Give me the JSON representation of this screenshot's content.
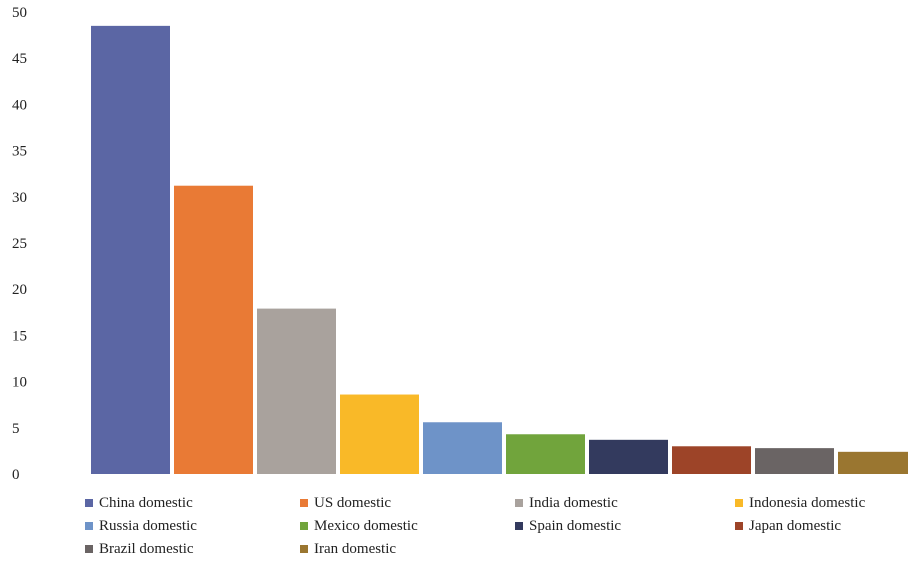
{
  "chart_data": {
    "type": "bar",
    "categories": [
      "China domestic",
      "US domestic",
      "India domestic",
      "Indonesia domestic",
      "Russia domestic",
      "Mexico domestic",
      "Spain domestic",
      "Japan domestic",
      "Brazil domestic",
      "Iran domestic"
    ],
    "values": [
      48.5,
      31.2,
      17.9,
      8.6,
      5.6,
      4.3,
      3.7,
      3.0,
      2.8,
      2.4
    ],
    "colors": [
      "#5b66a4",
      "#e97a35",
      "#a9a29d",
      "#f9b928",
      "#6e93c8",
      "#71a43c",
      "#333a5e",
      "#9d4428",
      "#6a6464",
      "#9a7630"
    ],
    "y_ticks": [
      "0",
      "5",
      "10",
      "15",
      "20",
      "25",
      "30",
      "35",
      "40",
      "45",
      "50"
    ],
    "ylim": [
      0,
      50
    ],
    "grid": false,
    "legend_position": "bottom",
    "title": "",
    "xlabel": "",
    "ylabel": ""
  }
}
